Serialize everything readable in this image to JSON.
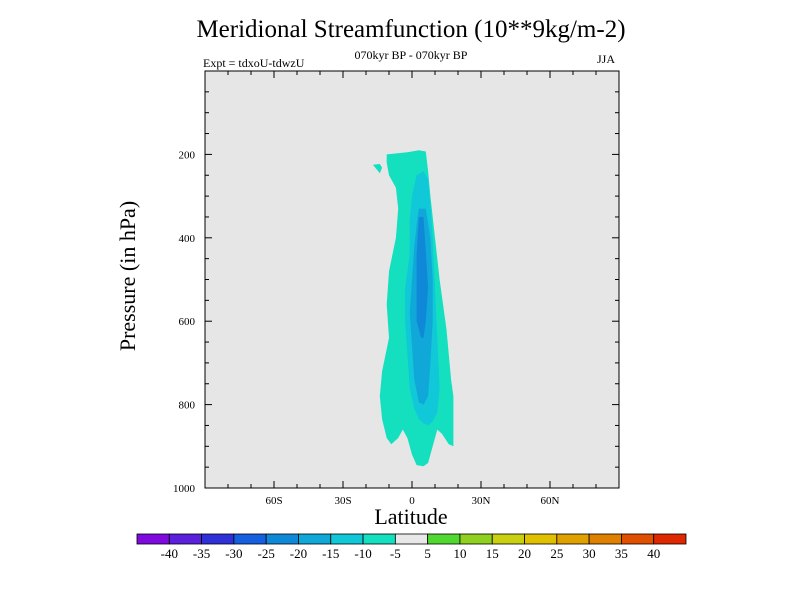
{
  "header": {
    "title": "Meridional Streamfunction (10**9kg/m-2)",
    "expt": "Expt = tdxoU-tdwzU",
    "period": "070kyr BP - 070kyr BP",
    "season": "JJA"
  },
  "chart_data": {
    "type": "heatmap",
    "title": "Meridional Streamfunction (10**9kg/m-2)",
    "xlabel": "Latitude",
    "ylabel": "Pressure (in hPa)",
    "xlim": [
      -90,
      90
    ],
    "ylim": [
      1000,
      0
    ],
    "y_scale": "linear, reversed",
    "grid": false,
    "x_ticks": [
      -60,
      -30,
      0,
      30,
      60
    ],
    "x_tick_labels": [
      "60S",
      "30S",
      "0",
      "30N",
      "60N"
    ],
    "y_ticks": [
      200,
      400,
      600,
      800,
      1000
    ],
    "y_tick_labels": [
      "200",
      "400",
      "600",
      "800",
      "1000"
    ],
    "background_color": "#e6e6e6",
    "colorbar": {
      "levels": [
        -40,
        -35,
        -30,
        -25,
        -20,
        -15,
        -10,
        -5,
        5,
        10,
        15,
        20,
        25,
        30,
        35,
        40
      ],
      "level_labels": [
        "-40",
        "-35",
        "-30",
        "-25",
        "-20",
        "-15",
        "-10",
        "-5",
        "5",
        "10",
        "15",
        "20",
        "25",
        "30",
        "35",
        "40"
      ],
      "colors": [
        "#7e0ae0",
        "#5a20dc",
        "#2e30d8",
        "#1560e0",
        "#1088d8",
        "#10a8d8",
        "#10c8d8",
        "#14e0c0",
        "#e8e8e8",
        "#50d830",
        "#90d020",
        "#c8d010",
        "#e0c000",
        "#e0a000",
        "#e08000",
        "#e05000",
        "#e02800"
      ]
    },
    "contours": [
      {
        "level": "-10 to -5",
        "color": "#14e0c0",
        "polygon": [
          [
            -11,
            200
          ],
          [
            -2,
            195
          ],
          [
            3,
            190
          ],
          [
            6,
            193
          ],
          [
            7,
            240
          ],
          [
            8,
            300
          ],
          [
            10,
            400
          ],
          [
            12,
            500
          ],
          [
            15,
            620
          ],
          [
            17,
            740
          ],
          [
            18,
            780
          ],
          [
            18,
            900
          ],
          [
            16,
            895
          ],
          [
            13,
            870
          ],
          [
            11,
            860
          ],
          [
            9,
            900
          ],
          [
            7,
            940
          ],
          [
            5,
            948
          ],
          [
            2,
            945
          ],
          [
            0,
            920
          ],
          [
            -2,
            880
          ],
          [
            -4,
            860
          ],
          [
            -6,
            880
          ],
          [
            -9,
            895
          ],
          [
            -11,
            880
          ],
          [
            -13,
            835
          ],
          [
            -14,
            780
          ],
          [
            -13,
            720
          ],
          [
            -10,
            640
          ],
          [
            -11,
            560
          ],
          [
            -10,
            480
          ],
          [
            -7,
            400
          ],
          [
            -6,
            330
          ],
          [
            -7,
            280
          ],
          [
            -10,
            250
          ],
          [
            -11,
            220
          ]
        ]
      },
      {
        "level": "-10 to -5",
        "color": "#14e0c0",
        "polygon": [
          [
            -17,
            225
          ],
          [
            -14,
            223
          ],
          [
            -13,
            232
          ],
          [
            -14,
            245
          ]
        ]
      },
      {
        "level": "-15 to -10",
        "color": "#10c8d8",
        "polygon": [
          [
            2,
            250
          ],
          [
            5,
            240
          ],
          [
            7,
            260
          ],
          [
            8,
            320
          ],
          [
            9,
            400
          ],
          [
            10,
            520
          ],
          [
            11,
            640
          ],
          [
            12,
            760
          ],
          [
            11,
            820
          ],
          [
            9,
            840
          ],
          [
            7,
            850
          ],
          [
            5,
            845
          ],
          [
            3,
            835
          ],
          [
            1,
            810
          ],
          [
            -1,
            760
          ],
          [
            -2,
            680
          ],
          [
            -3,
            600
          ],
          [
            -3,
            520
          ],
          [
            -1,
            440
          ],
          [
            -1,
            360
          ],
          [
            0,
            300
          ]
        ]
      },
      {
        "level": "-20 to -15",
        "color": "#10a8d8",
        "polygon": [
          [
            3,
            330
          ],
          [
            6,
            330
          ],
          [
            8,
            400
          ],
          [
            9,
            500
          ],
          [
            9,
            600
          ],
          [
            8,
            700
          ],
          [
            7,
            780
          ],
          [
            5,
            800
          ],
          [
            3,
            795
          ],
          [
            1,
            740
          ],
          [
            0,
            660
          ],
          [
            -1,
            580
          ],
          [
            0,
            500
          ],
          [
            1,
            420
          ],
          [
            2,
            370
          ]
        ]
      },
      {
        "level": "-25 to -20",
        "color": "#1088d8",
        "polygon": [
          [
            3,
            350
          ],
          [
            5,
            350
          ],
          [
            6,
            430
          ],
          [
            7,
            520
          ],
          [
            6,
            600
          ],
          [
            5,
            640
          ],
          [
            4,
            640
          ],
          [
            2,
            600
          ],
          [
            2,
            520
          ],
          [
            2,
            440
          ]
        ]
      }
    ]
  }
}
